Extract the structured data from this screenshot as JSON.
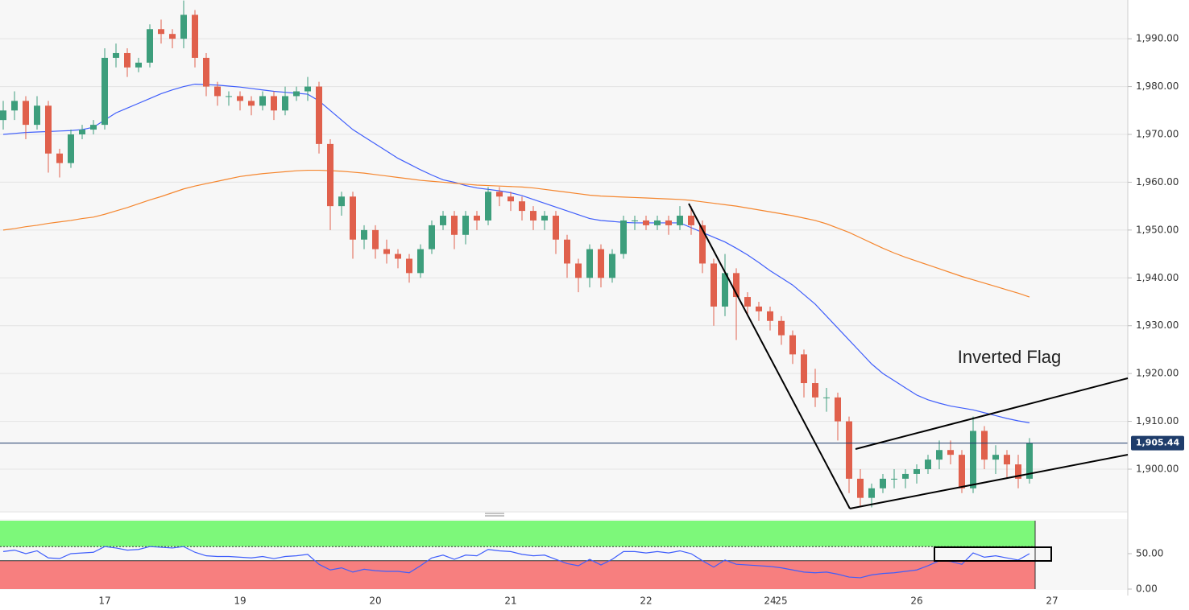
{
  "chart_data": [
    {
      "type": "candlestick",
      "categories": [
        null,
        null,
        null,
        null,
        null,
        null,
        null,
        null,
        null,
        "17",
        null,
        null,
        null,
        null,
        null,
        null,
        null,
        null,
        null,
        null,
        null,
        "19",
        null,
        null,
        null,
        null,
        null,
        null,
        null,
        null,
        null,
        null,
        null,
        "20",
        null,
        null,
        null,
        null,
        null,
        null,
        null,
        null,
        null,
        null,
        null,
        "21",
        null,
        null,
        null,
        null,
        null,
        null,
        null,
        null,
        null,
        null,
        null,
        "22",
        null,
        null,
        null,
        null,
        null,
        null,
        null,
        null,
        null,
        null,
        "24",
        "25",
        null,
        null,
        null,
        null,
        null,
        null,
        null,
        null,
        null,
        null,
        null,
        "26",
        null,
        null,
        null,
        null,
        null,
        null,
        null,
        null,
        null,
        null,
        null,
        "27"
      ],
      "open": [
        1973,
        1975,
        1977,
        1972,
        1976,
        1966,
        1964,
        1970,
        1971,
        1972,
        1986,
        1987,
        1984,
        1985,
        1992,
        1991,
        1990,
        1995,
        1986,
        1980,
        1978,
        1978,
        1977,
        1976,
        1978,
        1975,
        1978,
        1979,
        1980,
        1968,
        1955,
        1957,
        1948,
        1950,
        1946,
        1945,
        1944,
        1941,
        1946,
        1951,
        1953,
        1949,
        1953,
        1952,
        1958,
        1957,
        1956,
        1954,
        1952,
        1953,
        1948,
        1943,
        1940,
        1946,
        1940,
        1945,
        1952,
        1952,
        1951,
        1952,
        1951,
        1953,
        1951,
        1943,
        1934,
        1941,
        1936,
        1934,
        1933,
        1931,
        1928,
        1924,
        1918,
        1915,
        1915,
        1910,
        1898,
        1894,
        1896,
        1898,
        1898,
        1899,
        1900,
        1902,
        1904,
        1903,
        1896,
        1908,
        1902,
        1903,
        1901,
        1898,
        null,
        null
      ],
      "high": [
        1977,
        1979,
        1978,
        1978,
        1977,
        1967,
        1971,
        1972,
        1973,
        1988,
        1989,
        1988,
        1986,
        1993,
        1994,
        1992,
        1998,
        1996,
        1987,
        1981,
        1979,
        1979,
        1978,
        1979,
        1979,
        1980,
        1980,
        1982,
        1981,
        1969,
        1958,
        1958,
        1951,
        1951,
        1948,
        1946,
        1945,
        1947,
        1952,
        1954,
        1954,
        1954,
        1954,
        1959,
        1959,
        1958,
        1957,
        1955,
        1954,
        1954,
        1949,
        1944,
        1947,
        1947,
        1946,
        1953,
        1953,
        1953,
        1953,
        1953,
        1955,
        1955,
        1952,
        1944,
        1945,
        1942,
        1937,
        1935,
        1934,
        1932,
        1929,
        1925,
        1921,
        1917,
        1916,
        1911,
        1900,
        1897,
        1899,
        1900,
        1900,
        1901,
        1903,
        1906,
        1906,
        1904,
        1911,
        1909,
        1905,
        1904,
        1903,
        1906.5,
        null,
        null
      ],
      "low": [
        1971,
        1973,
        1969,
        1971,
        1962,
        1961,
        1963,
        1969,
        1970,
        1971,
        1984,
        1982,
        1983,
        1984,
        1989,
        1988,
        1988,
        1984,
        1978,
        1976,
        1976,
        1975,
        1974,
        1975,
        1973,
        1974,
        1977,
        1977,
        1966,
        1950,
        1953,
        1944,
        1946,
        1944,
        1943,
        1942,
        1939,
        1940,
        1945,
        1950,
        1946,
        1947,
        1950,
        1951,
        1955,
        1954,
        1952,
        1950,
        1950,
        1945,
        1940,
        1937,
        1938,
        1938,
        1939,
        1944,
        1950,
        1950,
        1950,
        1949,
        1950,
        1949,
        1941,
        1930,
        1932,
        1927,
        1932,
        1931,
        1929,
        1926,
        1922,
        1915,
        1913,
        1912,
        1906,
        1895,
        1892,
        1892,
        1895,
        1896,
        1896,
        1897,
        1899,
        1900,
        1901,
        1895,
        1895,
        1900,
        1899,
        1898,
        1896,
        1897,
        null,
        null
      ],
      "close": [
        1975,
        1977,
        1972,
        1976,
        1966,
        1964,
        1970,
        1971,
        1972,
        1986,
        1987,
        1984,
        1985,
        1992,
        1991,
        1990,
        1995,
        1986,
        1980,
        1978,
        1978,
        1977,
        1976,
        1978,
        1975,
        1978,
        1979,
        1980,
        1968,
        1955,
        1957,
        1948,
        1950,
        1946,
        1945,
        1944,
        1941,
        1946,
        1951,
        1953,
        1949,
        1953,
        1952,
        1958,
        1957,
        1956,
        1954,
        1952,
        1953,
        1948,
        1943,
        1940,
        1946,
        1940,
        1945,
        1952,
        1952,
        1951,
        1952,
        1951,
        1953,
        1951,
        1943,
        1934,
        1941,
        1936,
        1934,
        1933,
        1931,
        1928,
        1924,
        1918,
        1915,
        1915,
        1910,
        1898,
        1894,
        1896,
        1898,
        1898,
        1899,
        1900,
        1902,
        1904,
        1903,
        1896,
        1908,
        1902,
        1903,
        1901,
        1898,
        1905.44,
        null,
        null
      ],
      "up_color": "#3d9e7c",
      "down_color": "#e0604c",
      "overlays": [
        {
          "color": "#3f5efb",
          "values": [
            1970,
            1970.2,
            1970.4,
            1970.5,
            1970.6,
            1970.7,
            1970.8,
            1971,
            1971.5,
            1973,
            1974.5,
            1975.5,
            1976.5,
            1977.5,
            1978.5,
            1979.3,
            1980,
            1980.5,
            1980.4,
            1980.3,
            1980.1,
            1979.9,
            1979.6,
            1979.3,
            1979,
            1978.8,
            1978.6,
            1978.4,
            1977,
            1975,
            1973,
            1971,
            1969.5,
            1968,
            1966.5,
            1965,
            1963.8,
            1962.6,
            1961.5,
            1960.5,
            1960,
            1959.3,
            1958.8,
            1958.5,
            1958.2,
            1957.8,
            1957.2,
            1956.4,
            1955.6,
            1954.8,
            1954,
            1953.2,
            1952.4,
            1952,
            1951.8,
            1951.6,
            1951.5,
            1951.5,
            1951.5,
            1951.5,
            1951.5,
            1950.5,
            1949.5,
            1948.5,
            1947.5,
            1946.2,
            1944.8,
            1943.2,
            1941.5,
            1940,
            1938.5,
            1936.5,
            1934.5,
            1932,
            1929.5,
            1927,
            1924.5,
            1922,
            1920,
            1918.5,
            1917,
            1915.5,
            1914.5,
            1913.8,
            1913.2,
            1912.8,
            1912.4,
            1911.8,
            1911.2,
            1910.6,
            1910.1,
            1909.7,
            null,
            null
          ]
        },
        {
          "color": "#f5862e",
          "values": [
            1950,
            1950.3,
            1950.7,
            1951,
            1951.4,
            1951.7,
            1952,
            1952.4,
            1952.7,
            1953.3,
            1954,
            1954.7,
            1955.5,
            1956.3,
            1957,
            1957.8,
            1958.6,
            1959.2,
            1959.7,
            1960.2,
            1960.7,
            1961.2,
            1961.5,
            1961.8,
            1962,
            1962.2,
            1962.4,
            1962.5,
            1962.5,
            1962.4,
            1962.3,
            1962.1,
            1961.9,
            1961.6,
            1961.3,
            1961,
            1960.7,
            1960.4,
            1960.2,
            1960,
            1959.8,
            1959.6,
            1959.4,
            1959.3,
            1959.2,
            1959.1,
            1959,
            1958.8,
            1958.5,
            1958.2,
            1957.9,
            1957.6,
            1957.3,
            1957.1,
            1957,
            1956.9,
            1956.8,
            1956.7,
            1956.6,
            1956.5,
            1956.4,
            1956.2,
            1955.9,
            1955.6,
            1955.3,
            1955,
            1954.6,
            1954.2,
            1953.8,
            1953.4,
            1953,
            1952.5,
            1952,
            1951.3,
            1950.4,
            1949.5,
            1948.4,
            1947.3,
            1946.2,
            1945.2,
            1944.3,
            1943.5,
            1942.7,
            1941.9,
            1941.1,
            1940.3,
            1939.6,
            1938.9,
            1938.2,
            1937.5,
            1936.8,
            1936,
            null,
            null
          ]
        }
      ],
      "ylim": [
        1891.25,
        1998.1
      ],
      "yticks": [
        {
          "value": 1900,
          "label": "1,900.00"
        },
        {
          "value": 1910,
          "label": "1,910.00"
        },
        {
          "value": 1920,
          "label": "1,920.00"
        },
        {
          "value": 1930,
          "label": "1,930.00"
        },
        {
          "value": 1940,
          "label": "1,940.00"
        },
        {
          "value": 1950,
          "label": "1,950.00"
        },
        {
          "value": 1960,
          "label": "1,960.00"
        },
        {
          "value": 1970,
          "label": "1,970.00"
        },
        {
          "value": 1980,
          "label": "1,980.00"
        },
        {
          "value": 1990,
          "label": "1,990.00"
        }
      ],
      "grid": true,
      "last_price": {
        "value": 1905.44,
        "label": "1,905.44"
      },
      "annotations": [
        "Inverted Flag"
      ]
    },
    {
      "type": "line",
      "values": [
        53,
        55,
        50,
        54,
        44,
        43,
        50,
        51,
        52,
        60,
        58,
        55,
        56,
        60,
        59,
        58,
        60,
        52,
        47,
        46,
        46,
        45,
        44,
        46,
        43,
        46,
        47,
        49,
        35,
        27,
        30,
        24,
        28,
        26,
        25,
        25,
        23,
        33,
        44,
        48,
        42,
        48,
        47,
        56,
        54,
        53,
        49,
        47,
        48,
        42,
        36,
        33,
        42,
        34,
        42,
        53,
        53,
        51,
        53,
        51,
        54,
        50,
        40,
        31,
        41,
        35,
        34,
        33,
        32,
        30,
        27,
        24,
        23,
        24,
        21,
        17,
        16,
        20,
        22,
        23,
        25,
        27,
        33,
        40,
        39,
        35,
        51,
        45,
        47,
        44,
        41,
        50,
        null,
        null
      ],
      "color": "#3f5efb",
      "ylim": [
        0,
        100
      ],
      "yticks": [
        {
          "value": 0,
          "label": "0.00"
        },
        {
          "value": 50,
          "label": "50.00"
        }
      ],
      "bands": [
        40,
        60
      ],
      "band_colors": [
        "#f77f7f",
        "#7df87a"
      ]
    }
  ]
}
